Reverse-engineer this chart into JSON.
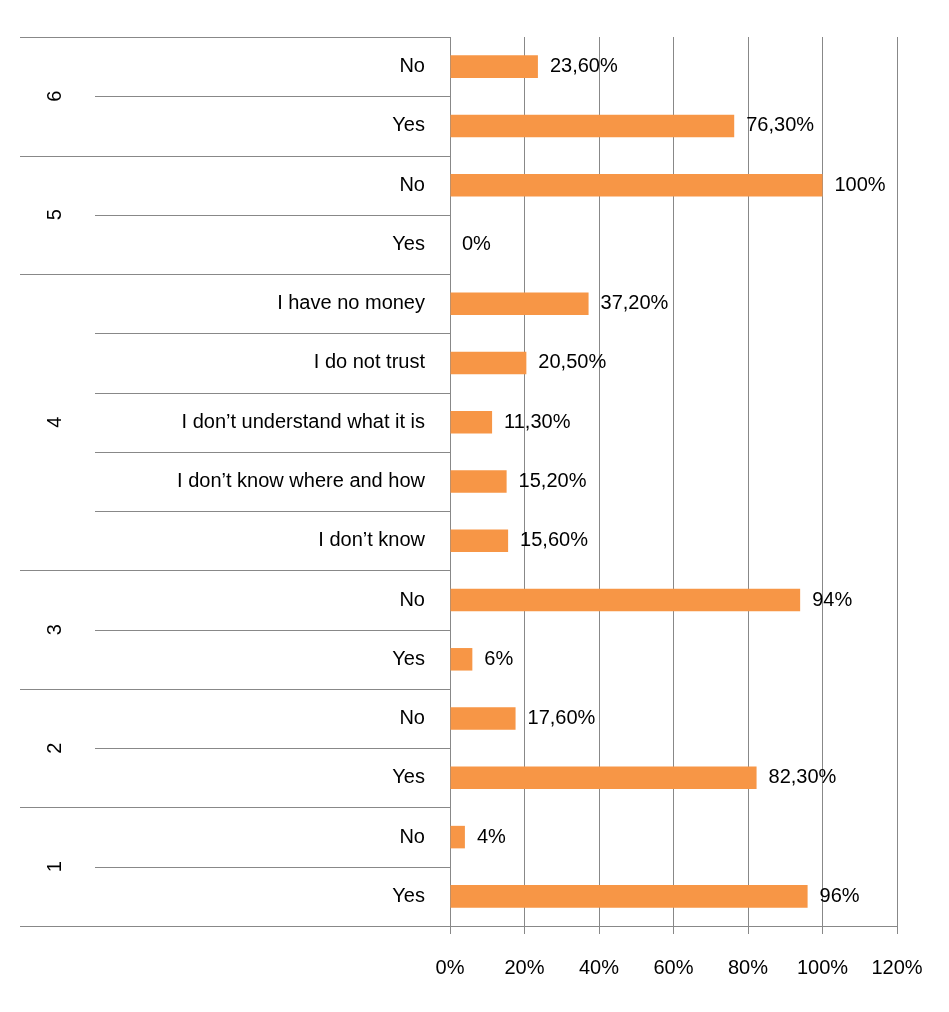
{
  "chart_data": {
    "type": "bar",
    "orientation": "horizontal",
    "categories": [
      "No",
      "Yes",
      "No",
      "Yes",
      "I have no money",
      "I do not trust",
      "I don’t understand what it is",
      "I don’t know where and how",
      "I don’t know",
      "No",
      "Yes",
      "No",
      "Yes",
      "No",
      "Yes"
    ],
    "values": [
      23.6,
      76.3,
      100,
      0,
      37.2,
      20.5,
      11.3,
      15.2,
      15.6,
      94,
      6,
      17.6,
      82.3,
      4,
      96
    ],
    "value_labels": [
      "23,60%",
      "76,30%",
      "100%",
      "0%",
      "37,20%",
      "20,50%",
      "11,30%",
      "15,20%",
      "15,60%",
      "94%",
      "6%",
      "17,60%",
      "82,30%",
      "4%",
      "96%"
    ],
    "color": "#f79646",
    "xlim": [
      0,
      120
    ],
    "xticks": [
      {
        "value": 0,
        "label": "0%"
      },
      {
        "value": 20,
        "label": "20%"
      },
      {
        "value": 40,
        "label": "40%"
      },
      {
        "value": 60,
        "label": "60%"
      },
      {
        "value": 80,
        "label": "80%"
      },
      {
        "value": 100,
        "label": "100%"
      },
      {
        "value": 120,
        "label": "120%"
      }
    ],
    "annotations": [
      "6",
      "5",
      "4",
      "3",
      "2",
      "1"
    ],
    "grid": "x",
    "legend": false
  }
}
